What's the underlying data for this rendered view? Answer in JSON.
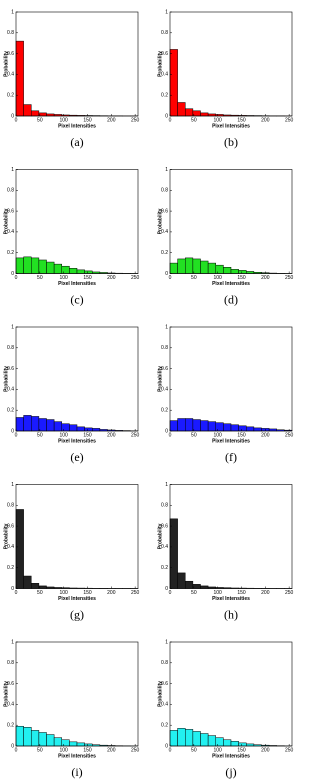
{
  "chart_data": [
    {
      "type": "histogram",
      "caption": "(a)",
      "xlabel": "Pixel Intensities",
      "ylabel": "Probability",
      "color": "#ff0000",
      "bins": [
        0,
        16,
        32,
        48,
        64,
        80,
        96,
        112,
        128,
        144,
        160,
        176,
        192,
        208,
        224,
        240,
        256
      ],
      "values": [
        0.72,
        0.11,
        0.05,
        0.03,
        0.02,
        0.015,
        0.01,
        0.008,
        0.006,
        0.005,
        0.004,
        0.003,
        0.002,
        0.002,
        0.001,
        0.001
      ],
      "xlim": [
        0,
        256
      ],
      "ylim": [
        0,
        1
      ],
      "xticks": [
        0,
        50,
        100,
        150,
        200,
        250
      ],
      "yticks": [
        0,
        0.2,
        0.4,
        0.6,
        0.8,
        1
      ]
    },
    {
      "type": "histogram",
      "caption": "(b)",
      "xlabel": "Pixel Intensities",
      "ylabel": "Probability",
      "color": "#ff0000",
      "bins": [
        0,
        16,
        32,
        48,
        64,
        80,
        96,
        112,
        128,
        144,
        160,
        176,
        192,
        208,
        224,
        240,
        256
      ],
      "values": [
        0.64,
        0.13,
        0.07,
        0.05,
        0.03,
        0.02,
        0.015,
        0.01,
        0.008,
        0.006,
        0.005,
        0.004,
        0.003,
        0.002,
        0.002,
        0.001
      ],
      "xlim": [
        0,
        256
      ],
      "ylim": [
        0,
        1
      ],
      "xticks": [
        0,
        50,
        100,
        150,
        200,
        250
      ],
      "yticks": [
        0,
        0.2,
        0.4,
        0.6,
        0.8,
        1
      ]
    },
    {
      "type": "histogram",
      "caption": "(c)",
      "xlabel": "Pixel Intensities",
      "ylabel": "Probability",
      "color": "#22e022",
      "bins": [
        0,
        16,
        32,
        48,
        64,
        80,
        96,
        112,
        128,
        144,
        160,
        176,
        192,
        208,
        224,
        240,
        256
      ],
      "values": [
        0.15,
        0.16,
        0.15,
        0.13,
        0.11,
        0.09,
        0.07,
        0.05,
        0.035,
        0.025,
        0.015,
        0.01,
        0.005,
        0.003,
        0.002,
        0.001
      ],
      "xlim": [
        0,
        256
      ],
      "ylim": [
        0,
        1
      ],
      "xticks": [
        0,
        50,
        100,
        150,
        200,
        250
      ],
      "yticks": [
        0,
        0.2,
        0.4,
        0.6,
        0.8,
        1
      ]
    },
    {
      "type": "histogram",
      "caption": "(d)",
      "xlabel": "Pixel Intensities",
      "ylabel": "Probability",
      "color": "#22e022",
      "bins": [
        0,
        16,
        32,
        48,
        64,
        80,
        96,
        112,
        128,
        144,
        160,
        176,
        192,
        208,
        224,
        240,
        256
      ],
      "values": [
        0.1,
        0.14,
        0.15,
        0.14,
        0.12,
        0.1,
        0.08,
        0.06,
        0.04,
        0.03,
        0.02,
        0.012,
        0.008,
        0.004,
        0.002,
        0.001
      ],
      "xlim": [
        0,
        256
      ],
      "ylim": [
        0,
        1
      ],
      "xticks": [
        0,
        50,
        100,
        150,
        200,
        250
      ],
      "yticks": [
        0,
        0.2,
        0.4,
        0.6,
        0.8,
        1
      ]
    },
    {
      "type": "histogram",
      "caption": "(e)",
      "xlabel": "Pixel Intensities",
      "ylabel": "Probability",
      "color": "#1a1aff",
      "bins": [
        0,
        16,
        32,
        48,
        64,
        80,
        96,
        112,
        128,
        144,
        160,
        176,
        192,
        208,
        224,
        240,
        256
      ],
      "values": [
        0.13,
        0.15,
        0.14,
        0.12,
        0.11,
        0.09,
        0.07,
        0.06,
        0.04,
        0.03,
        0.025,
        0.015,
        0.01,
        0.006,
        0.004,
        0.002
      ],
      "xlim": [
        0,
        256
      ],
      "ylim": [
        0,
        1
      ],
      "xticks": [
        0,
        50,
        100,
        150,
        200,
        250
      ],
      "yticks": [
        0,
        0.2,
        0.4,
        0.6,
        0.8,
        1
      ]
    },
    {
      "type": "histogram",
      "caption": "(f)",
      "xlabel": "Pixel Intensities",
      "ylabel": "Probability",
      "color": "#1a1aff",
      "bins": [
        0,
        16,
        32,
        48,
        64,
        80,
        96,
        112,
        128,
        144,
        160,
        176,
        192,
        208,
        224,
        240,
        256
      ],
      "values": [
        0.1,
        0.12,
        0.12,
        0.11,
        0.1,
        0.09,
        0.08,
        0.07,
        0.06,
        0.05,
        0.04,
        0.03,
        0.025,
        0.02,
        0.012,
        0.008
      ],
      "xlim": [
        0,
        256
      ],
      "ylim": [
        0,
        1
      ],
      "xticks": [
        0,
        50,
        100,
        150,
        200,
        250
      ],
      "yticks": [
        0,
        0.2,
        0.4,
        0.6,
        0.8,
        1
      ]
    },
    {
      "type": "histogram",
      "caption": "(g)",
      "xlabel": "Pixel Intensities",
      "ylabel": "Probability",
      "color": "#222222",
      "bins": [
        0,
        16,
        32,
        48,
        64,
        80,
        96,
        112,
        128,
        144,
        160,
        176,
        192,
        208,
        224,
        240,
        256
      ],
      "values": [
        0.76,
        0.12,
        0.05,
        0.025,
        0.015,
        0.01,
        0.008,
        0.005,
        0.004,
        0.003,
        0.002,
        0.002,
        0.001,
        0.001,
        0.001,
        0.001
      ],
      "xlim": [
        0,
        256
      ],
      "ylim": [
        0,
        1
      ],
      "xticks": [
        0,
        50,
        100,
        150,
        200,
        250
      ],
      "yticks": [
        0,
        0.2,
        0.4,
        0.6,
        0.8,
        1
      ]
    },
    {
      "type": "histogram",
      "caption": "(h)",
      "xlabel": "Pixel Intensities",
      "ylabel": "Probability",
      "color": "#222222",
      "bins": [
        0,
        16,
        32,
        48,
        64,
        80,
        96,
        112,
        128,
        144,
        160,
        176,
        192,
        208,
        224,
        240,
        256
      ],
      "values": [
        0.67,
        0.15,
        0.07,
        0.04,
        0.025,
        0.015,
        0.01,
        0.008,
        0.005,
        0.004,
        0.003,
        0.002,
        0.002,
        0.001,
        0.001,
        0.001
      ],
      "xlim": [
        0,
        256
      ],
      "ylim": [
        0,
        1
      ],
      "xticks": [
        0,
        50,
        100,
        150,
        200,
        250
      ],
      "yticks": [
        0,
        0.2,
        0.4,
        0.6,
        0.8,
        1
      ]
    },
    {
      "type": "histogram",
      "caption": "(i)",
      "xlabel": "Pixel Intensities",
      "ylabel": "Probability",
      "color": "#22f0f0",
      "bins": [
        0,
        16,
        32,
        48,
        64,
        80,
        96,
        112,
        128,
        144,
        160,
        176,
        192,
        208,
        224,
        240,
        256
      ],
      "values": [
        0.19,
        0.18,
        0.15,
        0.13,
        0.11,
        0.08,
        0.06,
        0.04,
        0.03,
        0.02,
        0.012,
        0.008,
        0.005,
        0.003,
        0.002,
        0.001
      ],
      "xlim": [
        0,
        256
      ],
      "ylim": [
        0,
        1
      ],
      "xticks": [
        0,
        50,
        100,
        150,
        200,
        250
      ],
      "yticks": [
        0,
        0.2,
        0.4,
        0.6,
        0.8,
        1
      ]
    },
    {
      "type": "histogram",
      "caption": "(j)",
      "xlabel": "Pixel Intensities",
      "ylabel": "Probability",
      "color": "#22f0f0",
      "bins": [
        0,
        16,
        32,
        48,
        64,
        80,
        96,
        112,
        128,
        144,
        160,
        176,
        192,
        208,
        224,
        240,
        256
      ],
      "values": [
        0.15,
        0.17,
        0.16,
        0.14,
        0.12,
        0.1,
        0.08,
        0.06,
        0.045,
        0.03,
        0.02,
        0.012,
        0.008,
        0.005,
        0.003,
        0.001
      ],
      "xlim": [
        0,
        256
      ],
      "ylim": [
        0,
        1
      ],
      "xticks": [
        0,
        50,
        100,
        150,
        200,
        250
      ],
      "yticks": [
        0,
        0.2,
        0.4,
        0.6,
        0.8,
        1
      ]
    }
  ]
}
